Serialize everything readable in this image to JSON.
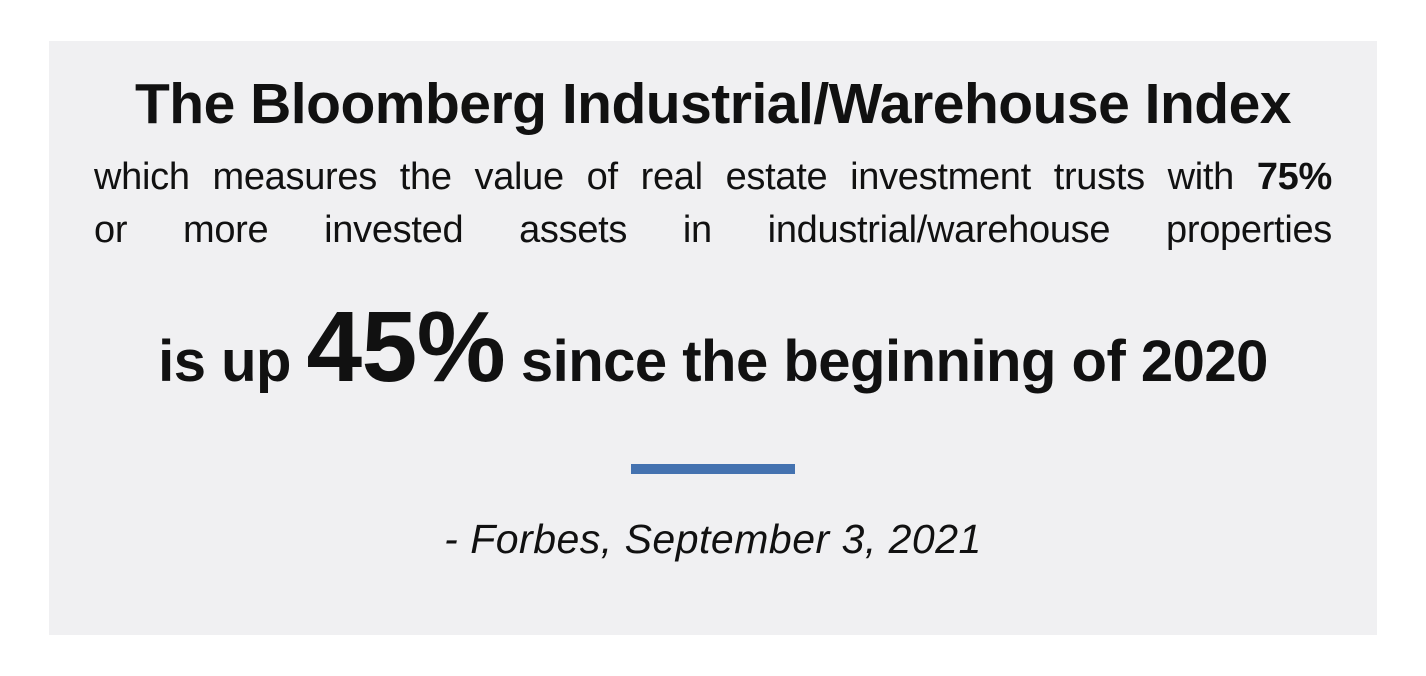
{
  "card": {
    "title": "The Bloomberg Industrial/Warehouse Index",
    "description": {
      "line1_regular": "which measures the value of real estate investment trusts with ",
      "line1_bold": "75%",
      "line2": "or more invested assets in industrial/warehouse properties"
    },
    "statement": {
      "prefix": "is up ",
      "highlight": "45%",
      "suffix": " since the beginning of 2020"
    },
    "attribution": "- Forbes, September 3, 2021",
    "colors": {
      "card_background": "#f0f0f2",
      "divider_blue": "#4472b0",
      "text": "#111111"
    }
  }
}
